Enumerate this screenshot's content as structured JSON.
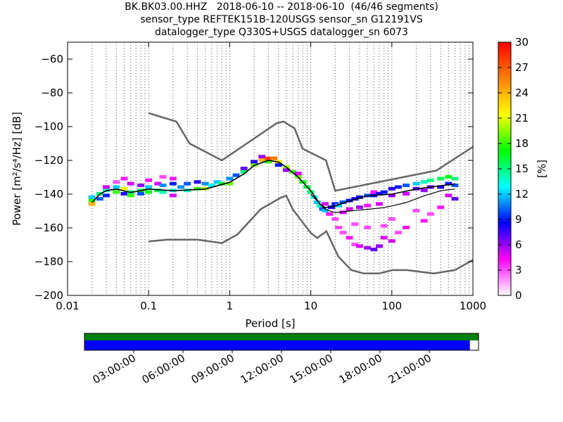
{
  "titles": [
    "BK.BK03.00.HHZ   2018-06-10 -- 2018-06-10  (46/46 segments)",
    "sensor_type REFTEK151B-120USGS sensor_sn G12191VS",
    "datalogger_type Q330S+USGS datalogger_sn 6073"
  ],
  "chart_data": {
    "type": "heatmap",
    "xlabel": "Period [s]",
    "ylabel": "Power [m²/s⁴/Hz] [dB]",
    "x_scale": "log",
    "xlim": [
      0.01,
      1000
    ],
    "ylim": [
      -200,
      -50
    ],
    "x_ticks": [
      0.01,
      0.1,
      1,
      10,
      100,
      1000
    ],
    "x_tick_labels": [
      "0.01",
      "0.1",
      "1",
      "10",
      "100",
      "1000"
    ],
    "y_ticks": [
      -200,
      -180,
      -160,
      -140,
      -120,
      -100,
      -80,
      -60
    ],
    "y_tick_labels": [
      "−200",
      "−180",
      "−160",
      "−140",
      "−120",
      "−100",
      "−80",
      "−60"
    ],
    "grid": "dotted vertical",
    "colorbar": {
      "label": "[%]",
      "min": 0,
      "max": 30,
      "ticks": [
        0,
        3,
        6,
        9,
        12,
        15,
        18,
        21,
        24,
        27,
        30
      ],
      "colors": [
        "#ffffff",
        "#ff00ff",
        "#0000ff",
        "#00ffff",
        "#00ff00",
        "#ffff00",
        "#ff8000",
        "#ff0000"
      ]
    },
    "noise_model_high": {
      "color": "#666666",
      "points": [
        [
          0.1,
          -92
        ],
        [
          0.22,
          -97
        ],
        [
          0.32,
          -110
        ],
        [
          0.8,
          -120
        ],
        [
          3.8,
          -98
        ],
        [
          4.6,
          -97
        ],
        [
          6.3,
          -101
        ],
        [
          7.9,
          -113
        ],
        [
          15.4,
          -120
        ],
        [
          20,
          -138
        ],
        [
          354.8,
          -126
        ],
        [
          1000,
          -112
        ]
      ]
    },
    "noise_model_low": {
      "color": "#666666",
      "points": [
        [
          0.1,
          -168
        ],
        [
          0.17,
          -167
        ],
        [
          0.4,
          -167
        ],
        [
          0.8,
          -169
        ],
        [
          1.24,
          -164
        ],
        [
          2.4,
          -149
        ],
        [
          4.3,
          -142
        ],
        [
          5,
          -141
        ],
        [
          6,
          -149
        ],
        [
          10,
          -163
        ],
        [
          12,
          -166
        ],
        [
          15.6,
          -162
        ],
        [
          21.9,
          -177
        ],
        [
          31.6,
          -185
        ],
        [
          45,
          -187
        ],
        [
          70,
          -187
        ],
        [
          101,
          -185
        ],
        [
          154,
          -185
        ],
        [
          328,
          -187
        ],
        [
          600,
          -185
        ],
        [
          1000,
          -179
        ]
      ]
    },
    "mode_curve": {
      "color": "#000000",
      "points": [
        [
          0.02,
          -145
        ],
        [
          0.025,
          -140
        ],
        [
          0.03,
          -138
        ],
        [
          0.04,
          -137
        ],
        [
          0.06,
          -139
        ],
        [
          0.08,
          -138
        ],
        [
          0.1,
          -137
        ],
        [
          0.2,
          -138
        ],
        [
          0.5,
          -137
        ],
        [
          1,
          -133
        ],
        [
          1.5,
          -128
        ],
        [
          2,
          -123
        ],
        [
          3,
          -120
        ],
        [
          4,
          -121
        ],
        [
          5,
          -124
        ],
        [
          7,
          -130
        ],
        [
          10,
          -138
        ],
        [
          13,
          -146
        ],
        [
          15,
          -148
        ],
        [
          20,
          -147
        ],
        [
          30,
          -144
        ],
        [
          50,
          -141
        ],
        [
          100,
          -140
        ],
        [
          200,
          -137
        ],
        [
          400,
          -135
        ],
        [
          600,
          -134
        ]
      ]
    },
    "p10_curve": {
      "color": "#000000",
      "points": [
        [
          10,
          -140
        ],
        [
          15,
          -149
        ],
        [
          20,
          -151
        ],
        [
          30,
          -150
        ],
        [
          50,
          -149
        ],
        [
          80,
          -148
        ],
        [
          100,
          -147
        ],
        [
          150,
          -145
        ],
        [
          250,
          -141
        ],
        [
          400,
          -138
        ],
        [
          600,
          -137
        ]
      ]
    },
    "histogram_cells": [
      [
        0.02,
        -144,
        18
      ],
      [
        0.02,
        -146,
        24
      ],
      [
        0.02,
        -142,
        12
      ],
      [
        0.025,
        -140,
        15
      ],
      [
        0.025,
        -143,
        10
      ],
      [
        0.03,
        -138,
        14
      ],
      [
        0.03,
        -136,
        5
      ],
      [
        0.03,
        -141,
        9
      ],
      [
        0.04,
        -133,
        3
      ],
      [
        0.04,
        -136,
        12
      ],
      [
        0.04,
        -139,
        18
      ],
      [
        0.05,
        -131,
        4
      ],
      [
        0.05,
        -137,
        21
      ],
      [
        0.05,
        -140,
        8
      ],
      [
        0.06,
        -134,
        5
      ],
      [
        0.06,
        -139,
        15
      ],
      [
        0.06,
        -141,
        18
      ],
      [
        0.08,
        -135,
        6
      ],
      [
        0.08,
        -138,
        16
      ],
      [
        0.08,
        -140,
        10
      ],
      [
        0.1,
        -132,
        4
      ],
      [
        0.1,
        -136,
        12
      ],
      [
        0.1,
        -139,
        17
      ],
      [
        0.13,
        -134,
        5
      ],
      [
        0.13,
        -138,
        16
      ],
      [
        0.15,
        -130,
        3
      ],
      [
        0.15,
        -135,
        11
      ],
      [
        0.15,
        -139,
        14
      ],
      [
        0.2,
        -131,
        4
      ],
      [
        0.2,
        -134,
        9
      ],
      [
        0.2,
        -138,
        13
      ],
      [
        0.2,
        -141,
        5
      ],
      [
        0.25,
        -136,
        11
      ],
      [
        0.3,
        -134,
        10
      ],
      [
        0.3,
        -138,
        14
      ],
      [
        0.4,
        -133,
        8
      ],
      [
        0.4,
        -137,
        18
      ],
      [
        0.5,
        -134,
        11
      ],
      [
        0.5,
        -137,
        20
      ],
      [
        0.6,
        -135,
        13
      ],
      [
        0.7,
        -133,
        12
      ],
      [
        0.8,
        -134,
        16
      ],
      [
        1,
        -131,
        11
      ],
      [
        1,
        -134,
        19
      ],
      [
        1.2,
        -129,
        10
      ],
      [
        1.5,
        -127,
        15
      ],
      [
        1.5,
        -125,
        7
      ],
      [
        2,
        -123,
        19
      ],
      [
        2,
        -121,
        8
      ],
      [
        2.5,
        -120,
        24
      ],
      [
        2.5,
        -118,
        6
      ],
      [
        3,
        -119,
        28
      ],
      [
        3,
        -121,
        18
      ],
      [
        3.5,
        -119,
        26
      ],
      [
        4,
        -121,
        22
      ],
      [
        4,
        -123,
        9
      ],
      [
        5,
        -124,
        20
      ],
      [
        5,
        -126,
        6
      ],
      [
        6,
        -127,
        18
      ],
      [
        7,
        -130,
        19
      ],
      [
        7,
        -128,
        5
      ],
      [
        8,
        -133,
        17
      ],
      [
        9,
        -136,
        16
      ],
      [
        10,
        -139,
        15
      ],
      [
        11,
        -142,
        13
      ],
      [
        12,
        -145,
        12
      ],
      [
        13,
        -147,
        14
      ],
      [
        14,
        -149,
        10
      ],
      [
        15,
        -150,
        12
      ],
      [
        15,
        -146,
        5
      ],
      [
        17,
        -152,
        4
      ],
      [
        18,
        -148,
        8
      ],
      [
        20,
        -146,
        9
      ],
      [
        20,
        -155,
        3
      ],
      [
        22,
        -147,
        12
      ],
      [
        22,
        -160,
        3
      ],
      [
        25,
        -145,
        10
      ],
      [
        25,
        -163,
        3
      ],
      [
        25,
        -151,
        5
      ],
      [
        30,
        -144,
        9
      ],
      [
        30,
        -166,
        4
      ],
      [
        30,
        -149,
        5
      ],
      [
        35,
        -143,
        8
      ],
      [
        35,
        -170,
        3
      ],
      [
        35,
        -158,
        3
      ],
      [
        40,
        -142,
        9
      ],
      [
        40,
        -148,
        6
      ],
      [
        40,
        -171,
        5
      ],
      [
        50,
        -141,
        10
      ],
      [
        50,
        -147,
        4
      ],
      [
        50,
        -172,
        6
      ],
      [
        50,
        -160,
        3
      ],
      [
        60,
        -141,
        9
      ],
      [
        60,
        -139,
        4
      ],
      [
        60,
        -173,
        7
      ],
      [
        70,
        -140,
        8
      ],
      [
        70,
        -146,
        5
      ],
      [
        70,
        -171,
        6
      ],
      [
        80,
        -139,
        9
      ],
      [
        80,
        -159,
        3
      ],
      [
        80,
        -166,
        5
      ],
      [
        100,
        -137,
        8
      ],
      [
        100,
        -141,
        6
      ],
      [
        100,
        -168,
        5
      ],
      [
        100,
        -155,
        3
      ],
      [
        120,
        -136,
        9
      ],
      [
        120,
        -163,
        3
      ],
      [
        150,
        -135,
        10
      ],
      [
        150,
        -140,
        5
      ],
      [
        150,
        -160,
        4
      ],
      [
        200,
        -134,
        12
      ],
      [
        200,
        -137,
        7
      ],
      [
        200,
        -150,
        3
      ],
      [
        250,
        -133,
        14
      ],
      [
        250,
        -138,
        6
      ],
      [
        250,
        -156,
        4
      ],
      [
        300,
        -132,
        15
      ],
      [
        300,
        -136,
        7
      ],
      [
        300,
        -152,
        3
      ],
      [
        400,
        -131,
        16
      ],
      [
        400,
        -136,
        8
      ],
      [
        400,
        -148,
        4
      ],
      [
        500,
        -130,
        17
      ],
      [
        500,
        -134,
        9
      ],
      [
        500,
        -141,
        5
      ],
      [
        600,
        -131,
        15
      ],
      [
        600,
        -135,
        10
      ],
      [
        600,
        -143,
        7
      ]
    ]
  },
  "coverage": {
    "time_ticks": [
      "03:00:00",
      "06:00:00",
      "09:00:00",
      "12:00:00",
      "15:00:00",
      "18:00:00",
      "21:00:00"
    ],
    "top_bar_color": "#008000",
    "bottom_bar_color": "#0000ff",
    "bottom_bar_fraction": 0.978
  }
}
